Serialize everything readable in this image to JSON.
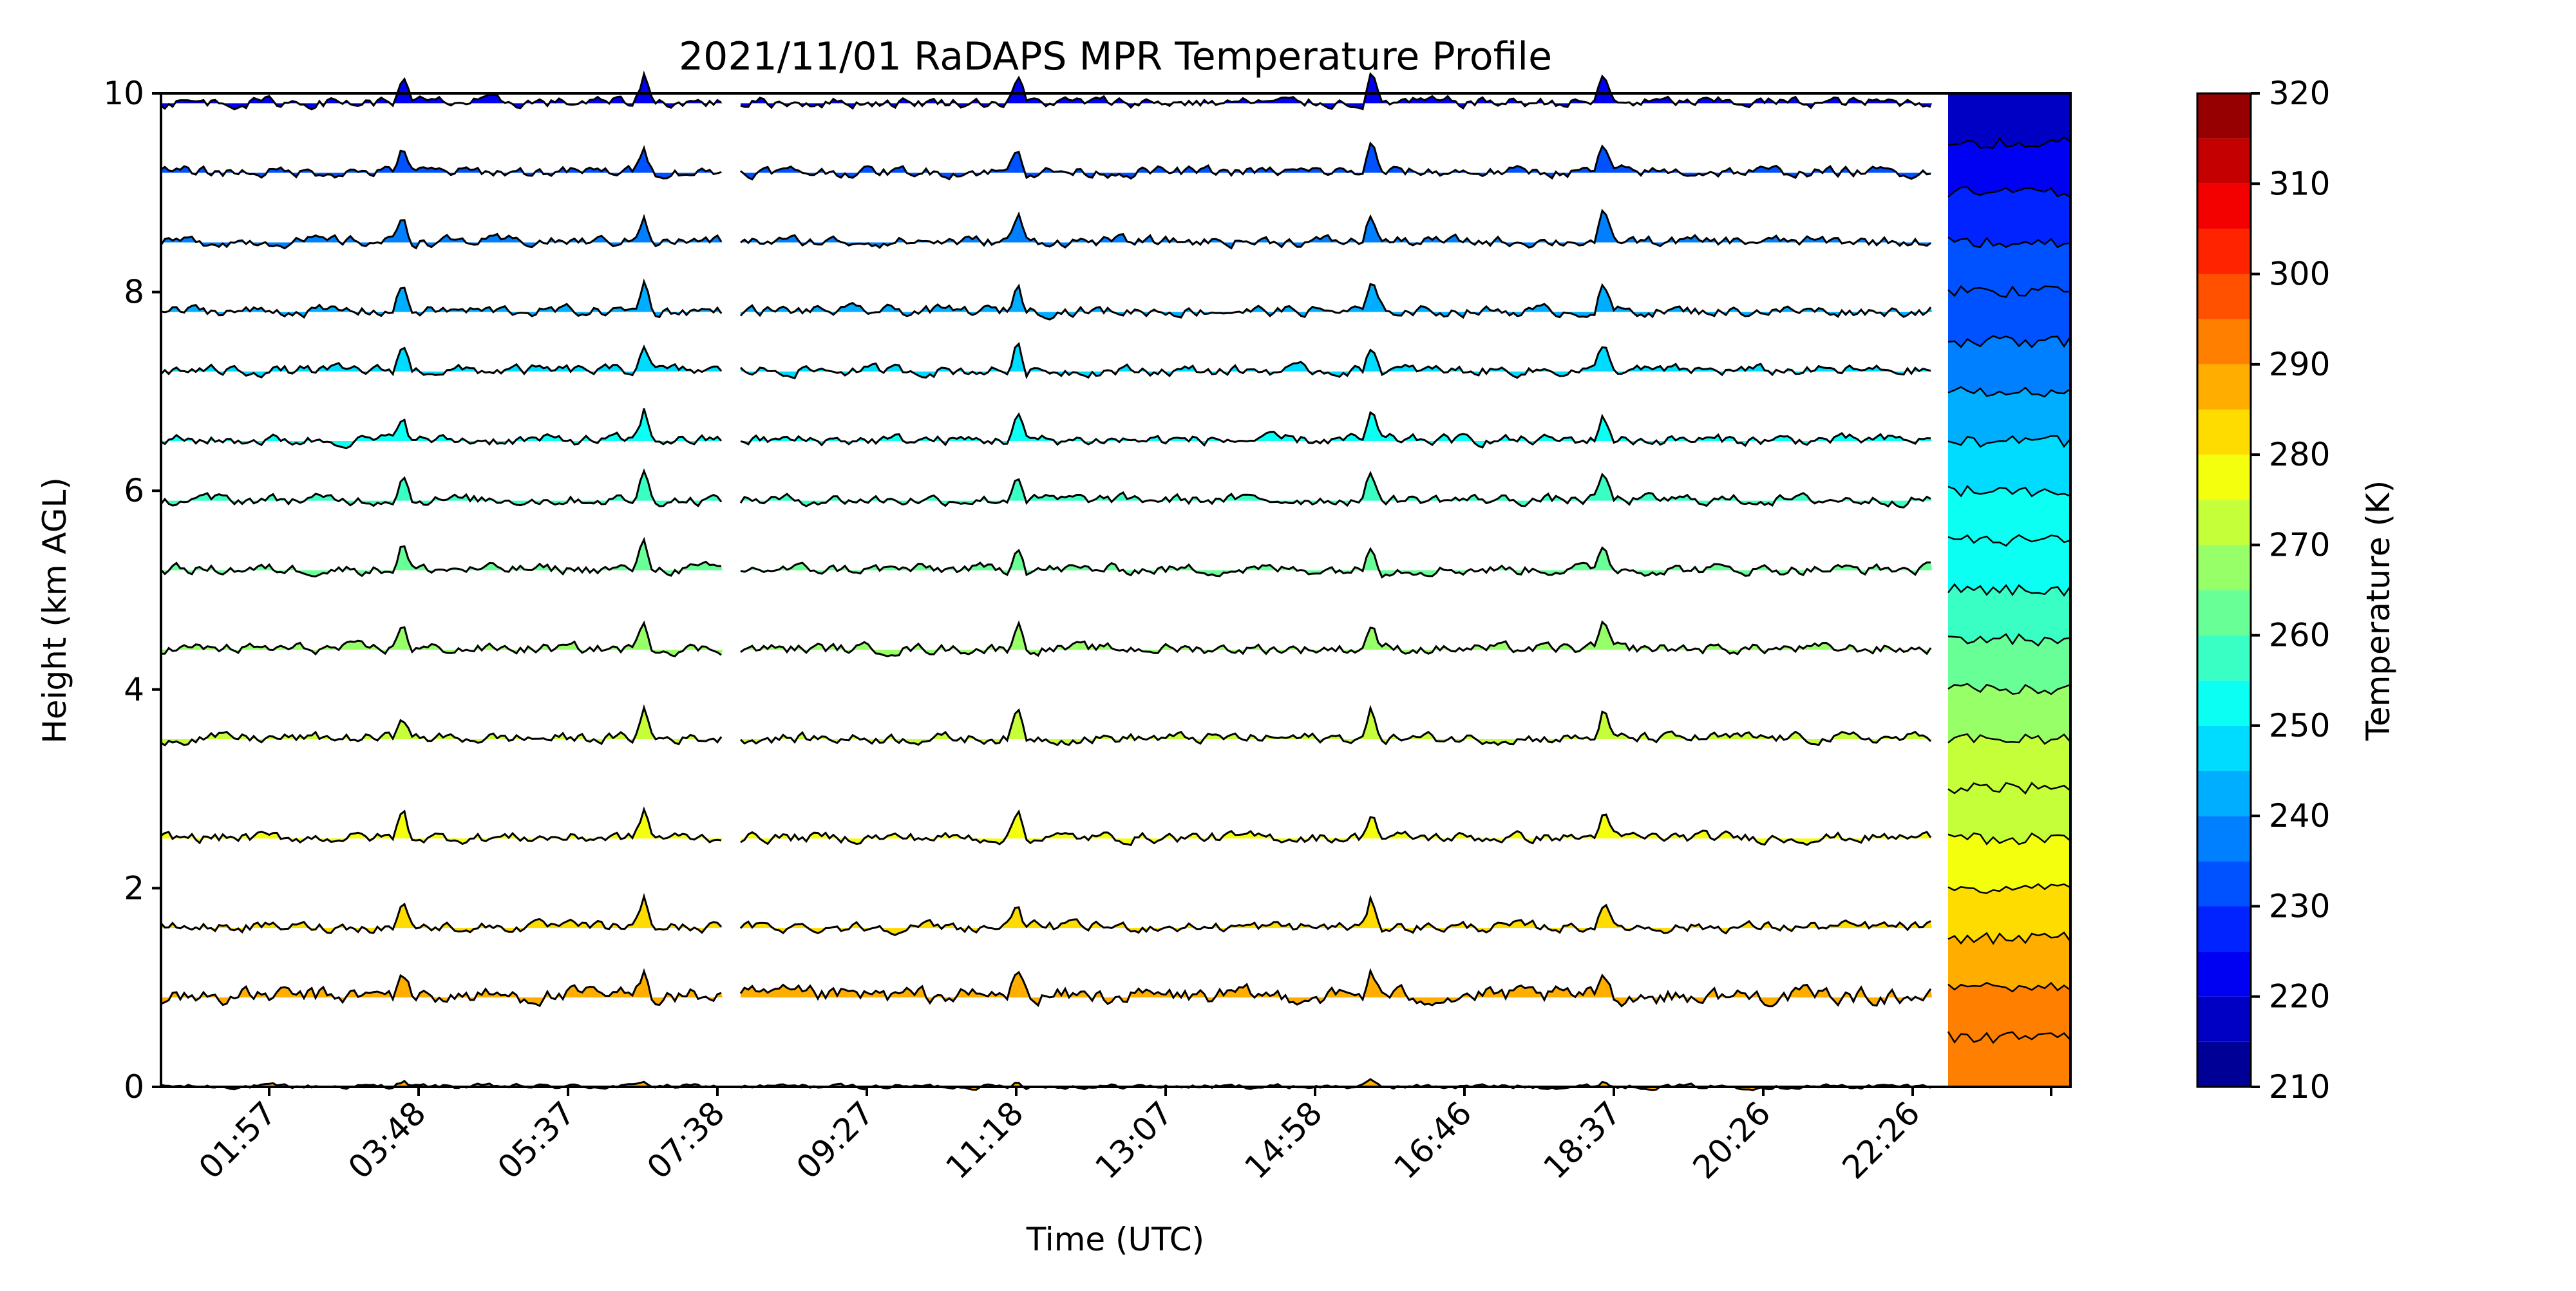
{
  "chart_data": {
    "type": "area",
    "title": "2021/11/01 RaDAPS MPR Temperature Profile",
    "xlabel": "Time (UTC)",
    "ylabel": "Height (km AGL)",
    "x_tick_labels": [
      "01:57",
      "03:48",
      "05:37",
      "07:38",
      "09:27",
      "11:18",
      "13:07",
      "14:58",
      "16:46",
      "18:37",
      "20:26",
      "22:26"
    ],
    "y_ticks": [
      0,
      2,
      4,
      6,
      8,
      10
    ],
    "ylim": [
      0,
      10
    ],
    "colorbar": {
      "label": "Temperature (K)",
      "range": [
        210,
        320
      ],
      "step": 5,
      "ticks": [
        210,
        220,
        230,
        240,
        250,
        260,
        270,
        280,
        290,
        300,
        310,
        320
      ]
    },
    "grid": false,
    "series": [
      {
        "height_km": 0.0,
        "base_temperature_K": 286
      },
      {
        "height_km": 0.9,
        "base_temperature_K": 287
      },
      {
        "height_km": 1.6,
        "base_temperature_K": 282
      },
      {
        "height_km": 2.5,
        "base_temperature_K": 277
      },
      {
        "height_km": 3.5,
        "base_temperature_K": 272
      },
      {
        "height_km": 4.4,
        "base_temperature_K": 267
      },
      {
        "height_km": 5.2,
        "base_temperature_K": 262
      },
      {
        "height_km": 5.9,
        "base_temperature_K": 256
      },
      {
        "height_km": 6.5,
        "base_temperature_K": 251
      },
      {
        "height_km": 7.2,
        "base_temperature_K": 246
      },
      {
        "height_km": 7.8,
        "base_temperature_K": 241
      },
      {
        "height_km": 8.5,
        "base_temperature_K": 236
      },
      {
        "height_km": 9.2,
        "base_temperature_K": 230
      },
      {
        "height_km": 9.9,
        "base_temperature_K": 224
      }
    ],
    "profile_panel": {
      "levels_K": [
        218,
        222,
        226,
        230,
        234,
        238,
        242,
        246,
        250,
        254,
        258,
        262,
        266,
        270,
        274,
        278,
        282,
        286,
        290,
        294
      ]
    }
  },
  "colors": {
    "line": "#000000",
    "background": "#ffffff"
  }
}
